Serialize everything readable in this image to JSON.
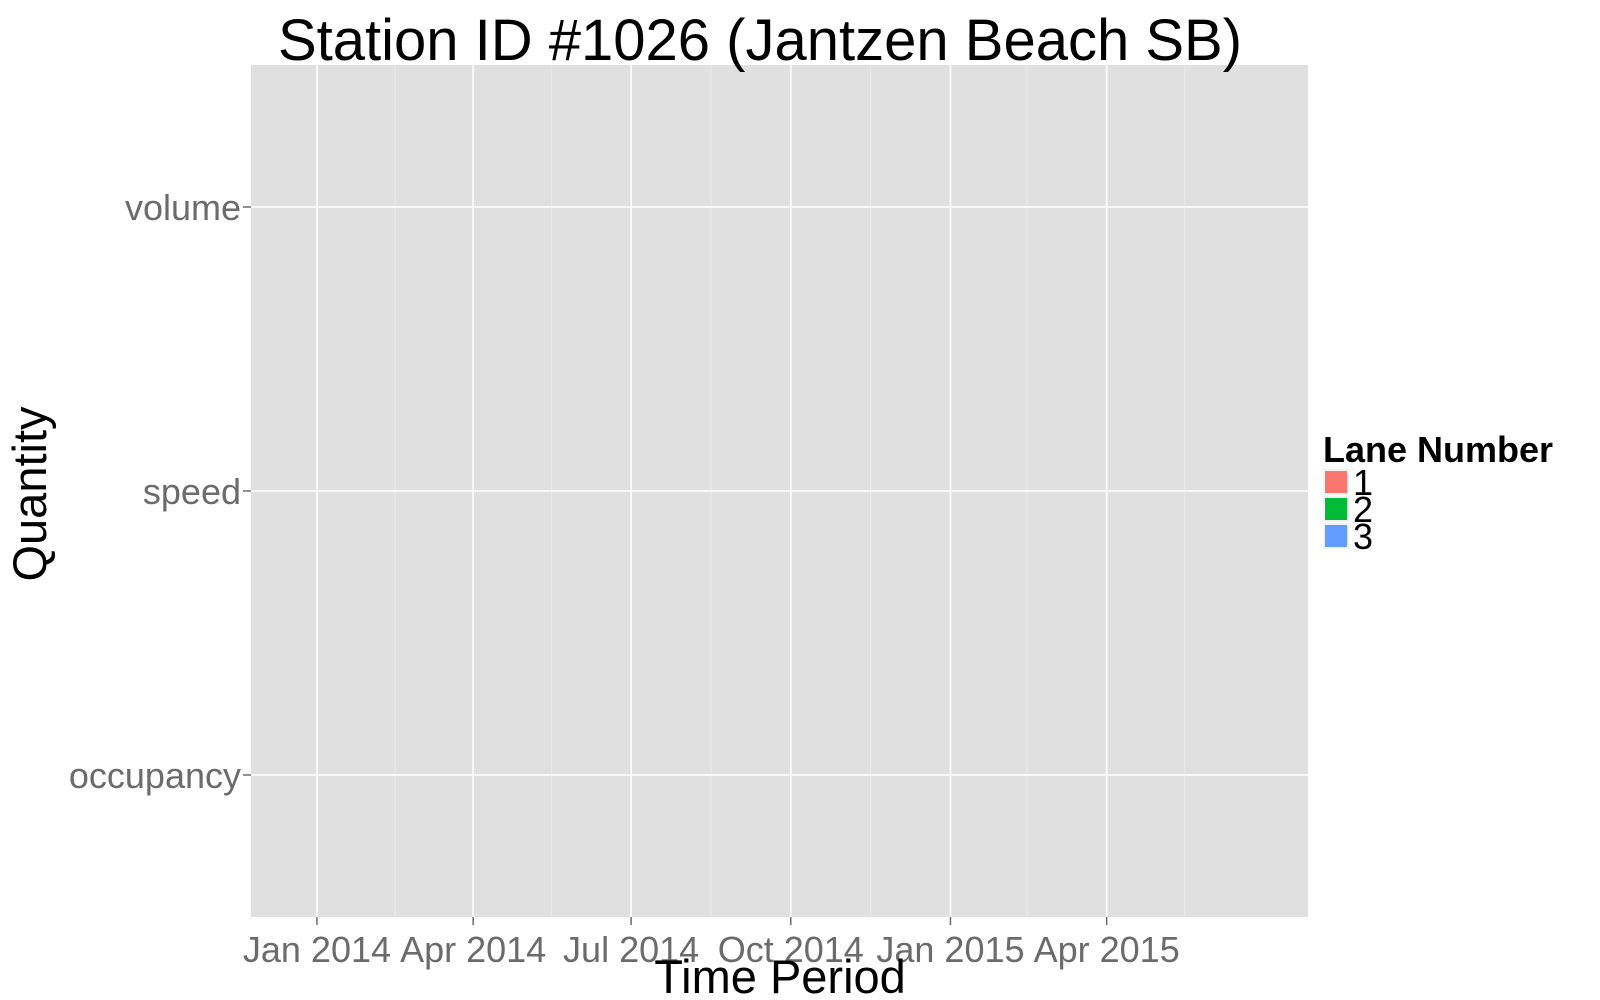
{
  "chart_data": {
    "type": "scatter",
    "title": "Station ID #1026 (Jantzen Beach SB)",
    "xlabel": "Time Period",
    "ylabel": "Quantity",
    "x_axis": {
      "scale": "time",
      "ticks": [
        {
          "date": "2014-01-01",
          "label": "Jan 2014"
        },
        {
          "date": "2014-04-01",
          "label": "Apr 2014"
        },
        {
          "date": "2014-07-01",
          "label": "Jul 2014"
        },
        {
          "date": "2014-10-01",
          "label": "Oct 2014"
        },
        {
          "date": "2015-01-01",
          "label": "Jan 2015"
        },
        {
          "date": "2015-04-01",
          "label": "Apr 2015"
        }
      ],
      "minor_ticks": [
        "2014-02-15",
        "2014-05-16",
        "2014-08-16",
        "2014-11-16",
        "2015-02-14",
        "2015-05-16"
      ],
      "range": [
        "2013-11-24",
        "2015-07-26"
      ]
    },
    "y_axis": {
      "scale": "categorical",
      "categories": [
        "occupancy",
        "speed",
        "volume"
      ]
    },
    "series": [
      {
        "name": "1",
        "color": "#F8766D",
        "points": []
      },
      {
        "name": "2",
        "color": "#00BA38",
        "points": []
      },
      {
        "name": "3",
        "color": "#619CFF",
        "points": []
      }
    ],
    "legend": {
      "title": "Lane Number",
      "placement": "right"
    },
    "grid": true,
    "panel_background": "#e5e5e5",
    "grid_color": "#ffffff"
  }
}
